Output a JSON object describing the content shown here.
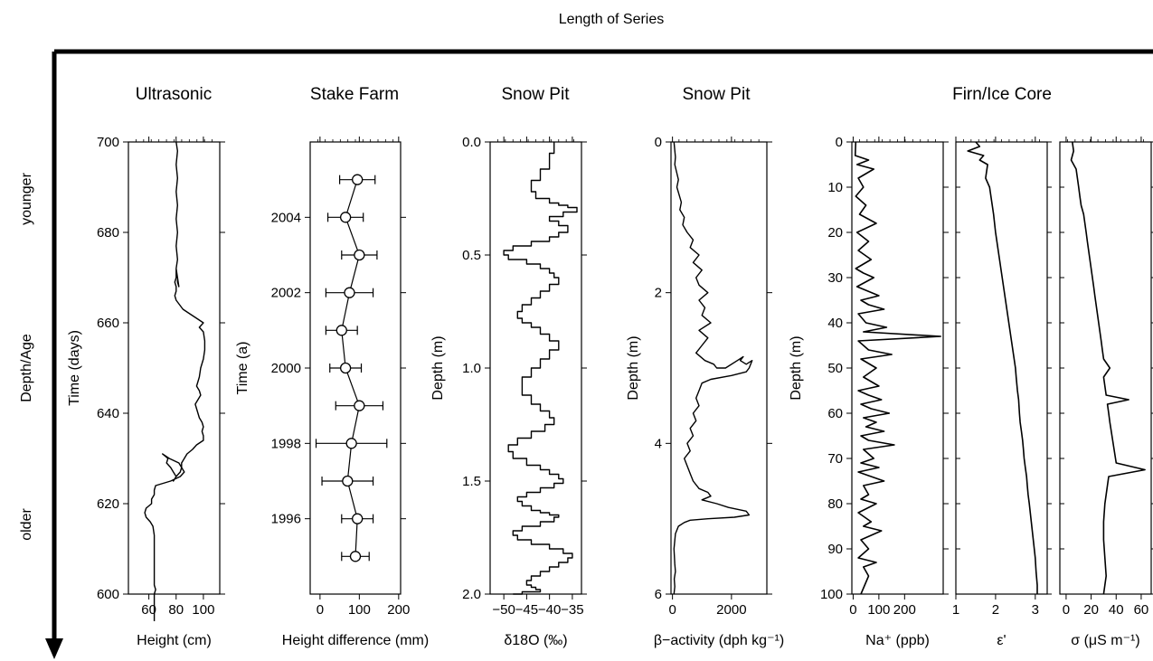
{
  "figure": {
    "top_label": "Length of Series",
    "side_labels": {
      "younger": "younger",
      "middle": "Depth/Age",
      "older": "older"
    },
    "line_color": "#000000",
    "marker_fill": "#ffffff"
  },
  "chart_data": [
    {
      "type": "line",
      "id": "ultrasonic",
      "title": "Ultrasonic",
      "xlabel": "Height (cm)",
      "ylabel": "Time (days)",
      "xlim": [
        45,
        112
      ],
      "ylim": [
        600,
        700
      ],
      "xticks": [
        60,
        80,
        100
      ],
      "yticks": [
        600,
        620,
        640,
        660,
        680,
        700
      ],
      "series": [
        {
          "x": [
            80,
            81,
            80,
            81,
            80,
            81,
            80,
            81,
            80,
            81,
            80,
            80,
            81,
            81,
            82,
            81,
            80,
            80,
            79,
            80,
            80,
            79,
            80,
            80,
            85,
            90,
            95,
            100,
            97,
            100,
            101,
            101,
            100,
            98,
            97,
            95,
            97,
            98,
            96,
            94,
            95,
            96,
            97,
            99,
            100,
            99,
            100,
            100,
            95,
            92,
            88,
            86,
            84,
            84,
            83,
            80,
            78,
            80,
            78,
            76,
            73,
            74,
            70,
            75,
            82,
            84,
            86,
            83,
            76,
            65,
            64,
            64,
            62,
            62,
            58,
            57,
            58,
            61,
            63,
            64,
            64,
            64,
            64,
            64,
            64,
            64,
            65,
            64,
            64,
            64,
            64,
            64,
            64,
            64
          ],
          "y": [
            700,
            698,
            695,
            692,
            689,
            686,
            683,
            680,
            677,
            674,
            672,
            671,
            670,
            669,
            668,
            670,
            672,
            670,
            669,
            668,
            667,
            666,
            665,
            665,
            663,
            662,
            661,
            660,
            659,
            658,
            656,
            654,
            652,
            650,
            648,
            646,
            645,
            644,
            643,
            642,
            641,
            640,
            639,
            638,
            637,
            636,
            635,
            634,
            633,
            632,
            631,
            630,
            629,
            628,
            627,
            626,
            625,
            626,
            627,
            628,
            629,
            630,
            631,
            630,
            629,
            628,
            627,
            626,
            625,
            624,
            623,
            622,
            621,
            620,
            619,
            618,
            617,
            616,
            615,
            613,
            611,
            609,
            607,
            605,
            603,
            602,
            601,
            600,
            599,
            598,
            597,
            596,
            595,
            594
          ]
        }
      ]
    },
    {
      "type": "scatter",
      "id": "stake_farm",
      "title": "Stake Farm",
      "xlabel": "Height difference (mm)",
      "ylabel": "Time (a)",
      "xlim": [
        -25,
        205
      ],
      "ylim": [
        1994.0,
        2006.0
      ],
      "xticks": [
        0,
        100,
        200
      ],
      "yticks": [
        1996,
        1998,
        2000,
        2002,
        2004
      ],
      "series": [
        {
          "x": [
            95,
            65,
            100,
            75,
            55,
            65,
            100,
            80,
            70,
            95,
            90
          ],
          "y": [
            2005.0,
            2004.0,
            2003.0,
            2002.0,
            2001.0,
            2000.0,
            1999.0,
            1998.0,
            1997.0,
            1996.0,
            1995.0
          ],
          "xerr": [
            45,
            45,
            45,
            60,
            40,
            40,
            60,
            90,
            65,
            40,
            35
          ]
        }
      ]
    },
    {
      "type": "line",
      "id": "snow_pit_d18o",
      "title": "Snow Pit",
      "xlabel": "δ18O (‰)",
      "ylabel": "Depth (m)",
      "xlim": [
        -53,
        -33
      ],
      "ylim": [
        0.0,
        2.0
      ],
      "xticks": [
        -50,
        -45,
        -40,
        -35
      ],
      "yticks": [
        0.0,
        0.5,
        1.0,
        1.5,
        2.0
      ],
      "series": [
        {
          "x": [
            -39,
            -39,
            -40,
            -40,
            -42,
            -44,
            -43,
            -40,
            -38,
            -36,
            -34,
            -37,
            -40,
            -38,
            -36,
            -36,
            -38,
            -40,
            -44,
            -48,
            -50,
            -49,
            -45,
            -42,
            -40,
            -39,
            -38,
            -40,
            -42,
            -44,
            -46,
            -47,
            -46,
            -44,
            -42,
            -40,
            -38,
            -40,
            -42,
            -44,
            -46,
            -46,
            -44,
            -42,
            -40,
            -39,
            -41,
            -44,
            -47,
            -49,
            -48,
            -45,
            -42,
            -40,
            -38,
            -37,
            -39,
            -42,
            -45,
            -47,
            -46,
            -44,
            -42,
            -40,
            -38,
            -39,
            -42,
            -46,
            -48,
            -47,
            -44,
            -40,
            -37,
            -35,
            -36,
            -38,
            -40,
            -42,
            -44,
            -45,
            -44,
            -43,
            -42,
            -44,
            -46,
            -47,
            -48
          ],
          "y": [
            0.0,
            0.05,
            0.08,
            0.12,
            0.17,
            0.22,
            0.25,
            0.27,
            0.28,
            0.29,
            0.31,
            0.33,
            0.35,
            0.37,
            0.38,
            0.4,
            0.42,
            0.44,
            0.46,
            0.48,
            0.5,
            0.52,
            0.54,
            0.56,
            0.58,
            0.6,
            0.63,
            0.66,
            0.69,
            0.72,
            0.75,
            0.78,
            0.8,
            0.82,
            0.85,
            0.88,
            0.92,
            0.96,
            1.0,
            1.04,
            1.08,
            1.12,
            1.16,
            1.19,
            1.22,
            1.25,
            1.28,
            1.31,
            1.34,
            1.37,
            1.4,
            1.43,
            1.45,
            1.47,
            1.49,
            1.51,
            1.53,
            1.55,
            1.57,
            1.59,
            1.61,
            1.63,
            1.64,
            1.65,
            1.66,
            1.68,
            1.7,
            1.72,
            1.74,
            1.76,
            1.78,
            1.8,
            1.82,
            1.84,
            1.86,
            1.88,
            1.9,
            1.92,
            1.94,
            1.96,
            1.97,
            1.98,
            1.99,
            1.99,
            2.0,
            2.0,
            2.0
          ]
        }
      ]
    },
    {
      "type": "line",
      "id": "snow_pit_beta",
      "title": "Snow Pit",
      "xlabel": "β−activity (dph kg⁻¹)",
      "ylabel": "Depth (m)",
      "xlim": [
        -50,
        3200
      ],
      "ylim": [
        0,
        6
      ],
      "xticks": [
        0,
        2000
      ],
      "yticks": [
        0,
        2,
        4,
        6
      ],
      "series": [
        {
          "x": [
            50,
            100,
            80,
            200,
            150,
            300,
            250,
            400,
            350,
            500,
            700,
            600,
            900,
            700,
            1000,
            800,
            900,
            1200,
            900,
            1100,
            1000,
            1300,
            900,
            1200,
            1000,
            800,
            1100,
            1400,
            1500,
            1800,
            2200,
            2400,
            2300,
            2500,
            2700,
            2600,
            2500,
            2000,
            1300,
            1000,
            900,
            800,
            900,
            700,
            800,
            600,
            700,
            500,
            600,
            400,
            500,
            600,
            700,
            900,
            1200,
            1300,
            1000,
            1500,
            1900,
            2500,
            2600,
            2100,
            1200,
            600,
            400,
            200,
            100,
            50,
            80,
            100,
            60,
            80,
            50
          ],
          "y": [
            0.0,
            0.2,
            0.3,
            0.5,
            0.6,
            0.8,
            0.9,
            1.0,
            1.1,
            1.2,
            1.3,
            1.4,
            1.5,
            1.6,
            1.7,
            1.8,
            1.9,
            2.0,
            2.1,
            2.2,
            2.3,
            2.4,
            2.5,
            2.6,
            2.7,
            2.8,
            2.9,
            2.95,
            3.0,
            3.0,
            2.9,
            2.85,
            2.9,
            2.95,
            2.9,
            3.0,
            3.05,
            3.1,
            3.15,
            3.2,
            3.3,
            3.4,
            3.5,
            3.6,
            3.7,
            3.8,
            3.9,
            4.0,
            4.1,
            4.2,
            4.3,
            4.4,
            4.5,
            4.6,
            4.65,
            4.7,
            4.75,
            4.8,
            4.85,
            4.9,
            4.95,
            4.98,
            5.0,
            5.02,
            5.05,
            5.1,
            5.2,
            5.4,
            5.6,
            5.7,
            5.8,
            5.9,
            6.0
          ]
        }
      ]
    },
    {
      "type": "line",
      "id": "core_na",
      "title": "",
      "xlabel": "Na⁺ (ppb)",
      "ylabel": "Depth (m)",
      "xlim": [
        -5,
        350
      ],
      "ylim": [
        0,
        100
      ],
      "xticks": [
        0,
        100,
        200
      ],
      "yticks": [
        0,
        10,
        20,
        30,
        40,
        50,
        60,
        70,
        80,
        90,
        100
      ],
      "series": [
        {
          "x": [
            10,
            8,
            60,
            15,
            80,
            20,
            40,
            10,
            50,
            25,
            90,
            15,
            60,
            20,
            70,
            10,
            40,
            80,
            15,
            100,
            30,
            60,
            120,
            20,
            50,
            130,
            40,
            340,
            20,
            60,
            150,
            30,
            90,
            40,
            100,
            20,
            60,
            110,
            30,
            70,
            140,
            40,
            90,
            50,
            120,
            30,
            60,
            160,
            40,
            80,
            30,
            100,
            20,
            70,
            120,
            40,
            60,
            30,
            90,
            20,
            70,
            40,
            110,
            30,
            60,
            20,
            90,
            40,
            60,
            30
          ],
          "y": [
            0,
            3,
            4,
            5,
            6,
            8,
            10,
            12,
            14,
            16,
            18,
            20,
            22,
            24,
            26,
            28,
            29,
            30,
            32,
            34,
            35,
            36,
            37,
            38,
            40,
            41,
            42,
            43,
            44,
            46,
            47,
            48,
            50,
            52,
            54,
            55,
            56,
            57,
            58,
            59,
            60,
            61,
            62,
            63,
            64,
            65,
            66,
            67,
            68,
            70,
            71,
            72,
            73,
            74,
            75,
            76,
            78,
            79,
            80,
            82,
            84,
            85,
            86,
            88,
            90,
            92,
            93,
            94,
            96,
            100
          ]
        }
      ]
    },
    {
      "type": "line",
      "id": "core_eps",
      "title": "",
      "xlabel": "ε'",
      "ylabel": "",
      "xlim": [
        1.0,
        3.3
      ],
      "ylim": [
        0,
        100
      ],
      "xticks": [
        1,
        2,
        3
      ],
      "yticks": [],
      "series": [
        {
          "x": [
            1.5,
            1.6,
            1.3,
            1.7,
            1.6,
            1.8,
            1.75,
            1.85,
            1.9,
            1.95,
            2.0,
            2.05,
            2.1,
            2.15,
            2.2,
            2.25,
            2.3,
            2.35,
            2.4,
            2.45,
            2.5,
            2.52,
            2.55,
            2.58,
            2.6,
            2.62,
            2.65,
            2.68,
            2.7,
            2.72,
            2.75,
            2.78,
            2.8,
            2.82,
            2.85,
            2.9,
            2.95,
            3.0,
            3.02,
            3.05,
            3.05
          ],
          "y": [
            0,
            1,
            2,
            3,
            4,
            5,
            8,
            10,
            13,
            16,
            20,
            23,
            26,
            29,
            32,
            35,
            38,
            41,
            44,
            47,
            50,
            52,
            55,
            57,
            60,
            62,
            64,
            66,
            68,
            70,
            72,
            74,
            76,
            78,
            80,
            84,
            88,
            92,
            95,
            98,
            100
          ]
        }
      ]
    },
    {
      "type": "line",
      "id": "core_sigma",
      "title": "",
      "xlabel": "σ (μS m⁻¹)",
      "ylabel": "",
      "xlim": [
        -5,
        68
      ],
      "ylim": [
        0,
        100
      ],
      "xticks": [
        0,
        20,
        40,
        60
      ],
      "yticks": [],
      "series": [
        {
          "x": [
            5,
            6,
            4,
            8,
            9,
            10,
            11,
            12,
            14,
            15,
            16,
            17,
            18,
            19,
            20,
            21,
            22,
            23,
            24,
            25,
            26,
            27,
            28,
            29,
            30,
            35,
            30,
            31,
            32,
            50,
            33,
            34,
            35,
            40,
            63,
            34,
            33,
            32,
            31,
            30,
            30,
            31,
            32,
            30
          ],
          "y": [
            0,
            2,
            4,
            6,
            8,
            10,
            12,
            14,
            16,
            18,
            20,
            22,
            24,
            26,
            28,
            30,
            32,
            34,
            36,
            38,
            40,
            42,
            44,
            46,
            48,
            50,
            52,
            54,
            56,
            57,
            58,
            60,
            62,
            71,
            72.5,
            74,
            76,
            78,
            80,
            84,
            88,
            92,
            96,
            100
          ]
        }
      ]
    }
  ]
}
